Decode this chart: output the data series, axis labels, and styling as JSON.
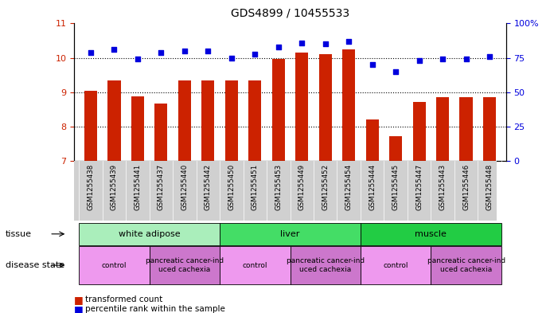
{
  "title": "GDS4899 / 10455533",
  "samples": [
    "GSM1255438",
    "GSM1255439",
    "GSM1255441",
    "GSM1255437",
    "GSM1255440",
    "GSM1255442",
    "GSM1255450",
    "GSM1255451",
    "GSM1255453",
    "GSM1255449",
    "GSM1255452",
    "GSM1255454",
    "GSM1255444",
    "GSM1255445",
    "GSM1255447",
    "GSM1255443",
    "GSM1255446",
    "GSM1255448"
  ],
  "bar_values": [
    9.05,
    9.35,
    8.88,
    8.68,
    9.35,
    9.35,
    9.35,
    9.35,
    9.98,
    10.15,
    10.1,
    10.25,
    8.22,
    7.72,
    8.73,
    8.85,
    8.85,
    8.85
  ],
  "dot_values": [
    79,
    81,
    74,
    79,
    80,
    80,
    75,
    78,
    83,
    86,
    85,
    87,
    70,
    65,
    73,
    74,
    74,
    76
  ],
  "ylim_left": [
    7,
    11
  ],
  "ylim_right": [
    0,
    100
  ],
  "yticks_left": [
    7,
    8,
    9,
    10,
    11
  ],
  "yticks_right": [
    0,
    25,
    50,
    75,
    100
  ],
  "ytick_labels_right": [
    "0",
    "25",
    "50",
    "75",
    "100%"
  ],
  "bar_color": "#cc2200",
  "dot_color": "#0000dd",
  "tissue_groups": [
    {
      "label": "white adipose",
      "start": 0,
      "end": 6,
      "color": "#aaeebb"
    },
    {
      "label": "liver",
      "start": 6,
      "end": 12,
      "color": "#44dd66"
    },
    {
      "label": "muscle",
      "start": 12,
      "end": 18,
      "color": "#22cc44"
    }
  ],
  "disease_groups": [
    {
      "label": "control",
      "start": 0,
      "end": 3,
      "color": "#ee99ee"
    },
    {
      "label": "pancreatic cancer-ind\nuced cachexia",
      "start": 3,
      "end": 6,
      "color": "#cc77cc"
    },
    {
      "label": "control",
      "start": 6,
      "end": 9,
      "color": "#ee99ee"
    },
    {
      "label": "pancreatic cancer-ind\nuced cachexia",
      "start": 9,
      "end": 12,
      "color": "#cc77cc"
    },
    {
      "label": "control",
      "start": 12,
      "end": 15,
      "color": "#ee99ee"
    },
    {
      "label": "pancreatic cancer-ind\nuced cachexia",
      "start": 15,
      "end": 18,
      "color": "#cc77cc"
    }
  ],
  "tissue_label": "tissue",
  "disease_label": "disease state",
  "legend_bar_label": "transformed count",
  "legend_dot_label": "percentile rank within the sample",
  "grid_dotted": [
    8,
    9,
    10
  ],
  "axis_color_left": "#cc2200",
  "axis_color_right": "#0000dd",
  "xticklabel_bg": "#d0d0d0"
}
